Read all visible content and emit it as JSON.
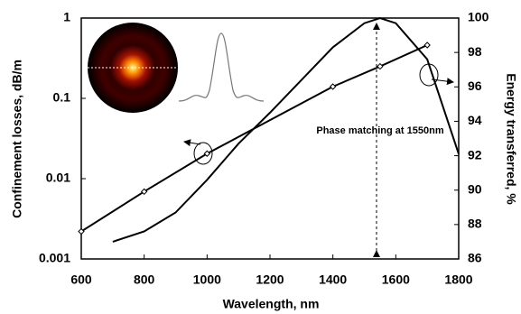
{
  "chart_data": {
    "type": "line",
    "x_label": "Wavelength, nm",
    "y_label": "Confinement losses, dB/m",
    "y2_label": "Energy transferred, %",
    "annotation": "Phase matching at 1550nm",
    "xlim": [
      600,
      1800
    ],
    "xticks": [
      600,
      800,
      1000,
      1200,
      1400,
      1600,
      1800
    ],
    "ylim": [
      0.001,
      1
    ],
    "yticks": [
      1,
      0.1,
      0.01,
      0.001
    ],
    "log_y": true,
    "y2lim": [
      86,
      100
    ],
    "y2ticks": [
      86,
      88,
      90,
      92,
      94,
      96,
      98,
      100
    ],
    "series": [
      {
        "color": "#000000",
        "markers": true,
        "x": [
          600,
          800,
          1000,
          1400,
          1550,
          1700
        ],
        "values": [
          0.0022,
          0.0069,
          0.0205,
          0.14,
          0.25,
          0.46
        ]
      },
      {
        "color": "#000000",
        "markers": false,
        "axis": "y2",
        "x": [
          700,
          800,
          900,
          1000,
          1100,
          1200,
          1300,
          1400,
          1500,
          1550,
          1600,
          1700,
          1800
        ],
        "values": [
          87.0,
          87.6,
          88.7,
          90.6,
          92.7,
          94.5,
          96.4,
          98.3,
          99.7,
          100,
          99.7,
          97.6,
          92.1
        ]
      }
    ]
  }
}
